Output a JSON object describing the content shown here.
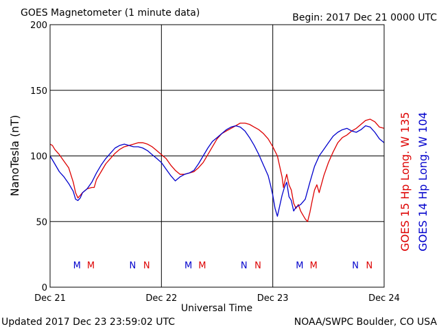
{
  "header": {
    "title": "GOES Magnetometer (1 minute data)",
    "begin": "Begin:  2017 Dec 21 0000 UTC"
  },
  "footer": {
    "updated": "Updated 2017 Dec 23 23:59:02 UTC",
    "credit": "NOAA/SWPC Boulder, CO USA"
  },
  "chart_data": {
    "type": "line",
    "xlabel": "Universal Time",
    "ylabel": "NanoTesla (nT)",
    "ylim": [
      0,
      200
    ],
    "yticks": [
      0,
      50,
      100,
      150,
      200
    ],
    "xlim": [
      0,
      72
    ],
    "xticks": [
      {
        "t": 0,
        "label": "Dec 21"
      },
      {
        "t": 24,
        "label": "Dec 22"
      },
      {
        "t": 48,
        "label": "Dec 23"
      },
      {
        "t": 72,
        "label": "Dec 24"
      }
    ],
    "grid": true,
    "legend_placement": "right-vertical",
    "series": [
      {
        "name": "GOES 15 Hp  Long. W 135",
        "color": "#dd0000",
        "points": [
          [
            0,
            109
          ],
          [
            0.5,
            108
          ],
          [
            1,
            105
          ],
          [
            2,
            101
          ],
          [
            3,
            96
          ],
          [
            4,
            91
          ],
          [
            5,
            80
          ],
          [
            5.5,
            72
          ],
          [
            6,
            68
          ],
          [
            6.5,
            70
          ],
          [
            7,
            72
          ],
          [
            8,
            75
          ],
          [
            9,
            76
          ],
          [
            9.5,
            76
          ],
          [
            10,
            82
          ],
          [
            11,
            88
          ],
          [
            12,
            94
          ],
          [
            13,
            98
          ],
          [
            14,
            102
          ],
          [
            15,
            105
          ],
          [
            16,
            107
          ],
          [
            17,
            108
          ],
          [
            18,
            109
          ],
          [
            19,
            110
          ],
          [
            20,
            110
          ],
          [
            21,
            109
          ],
          [
            22,
            107
          ],
          [
            23,
            104
          ],
          [
            24,
            101
          ],
          [
            25,
            98
          ],
          [
            26,
            93
          ],
          [
            27,
            89
          ],
          [
            28,
            86
          ],
          [
            29,
            86
          ],
          [
            30,
            87
          ],
          [
            31,
            88
          ],
          [
            32,
            91
          ],
          [
            33,
            95
          ],
          [
            34,
            101
          ],
          [
            35,
            107
          ],
          [
            36,
            113
          ],
          [
            37,
            117
          ],
          [
            38,
            119
          ],
          [
            39,
            121
          ],
          [
            40,
            123
          ],
          [
            41,
            125
          ],
          [
            42,
            125
          ],
          [
            43,
            124
          ],
          [
            44,
            122
          ],
          [
            45,
            120
          ],
          [
            46,
            117
          ],
          [
            47,
            113
          ],
          [
            48,
            107
          ],
          [
            49,
            100
          ],
          [
            49.5,
            92
          ],
          [
            50,
            84
          ],
          [
            50.3,
            76
          ],
          [
            50.7,
            82
          ],
          [
            51,
            86
          ],
          [
            51.5,
            78
          ],
          [
            52,
            74
          ],
          [
            52.5,
            64
          ],
          [
            53,
            60
          ],
          [
            53.5,
            63
          ],
          [
            54,
            58
          ],
          [
            54.5,
            55
          ],
          [
            55,
            52
          ],
          [
            55.5,
            50
          ],
          [
            56,
            57
          ],
          [
            56.5,
            66
          ],
          [
            57,
            74
          ],
          [
            57.5,
            78
          ],
          [
            58,
            72
          ],
          [
            59,
            85
          ],
          [
            60,
            95
          ],
          [
            61,
            103
          ],
          [
            62,
            110
          ],
          [
            63,
            114
          ],
          [
            64,
            116
          ],
          [
            65,
            119
          ],
          [
            66,
            121
          ],
          [
            67,
            124
          ],
          [
            68,
            127
          ],
          [
            69,
            128
          ],
          [
            70,
            126
          ],
          [
            71,
            122
          ],
          [
            72,
            121
          ]
        ]
      },
      {
        "name": "GOES 14 Hp  Long. W 104",
        "color": "#0000cc",
        "points": [
          [
            0,
            100
          ],
          [
            1,
            94
          ],
          [
            2,
            88
          ],
          [
            3,
            84
          ],
          [
            4,
            79
          ],
          [
            5,
            73
          ],
          [
            5.5,
            67
          ],
          [
            6,
            66
          ],
          [
            6.5,
            68
          ],
          [
            7,
            72
          ],
          [
            8,
            75
          ],
          [
            9,
            80
          ],
          [
            10,
            87
          ],
          [
            11,
            93
          ],
          [
            12,
            98
          ],
          [
            13,
            102
          ],
          [
            14,
            106
          ],
          [
            15,
            108
          ],
          [
            16,
            109
          ],
          [
            17,
            108
          ],
          [
            18,
            107
          ],
          [
            19,
            107
          ],
          [
            20,
            106
          ],
          [
            21,
            104
          ],
          [
            22,
            101
          ],
          [
            23,
            98
          ],
          [
            24,
            95
          ],
          [
            25,
            90
          ],
          [
            26,
            85
          ],
          [
            27,
            81
          ],
          [
            28,
            84
          ],
          [
            29,
            86
          ],
          [
            30,
            87
          ],
          [
            31,
            89
          ],
          [
            32,
            94
          ],
          [
            33,
            100
          ],
          [
            34,
            106
          ],
          [
            35,
            111
          ],
          [
            36,
            114
          ],
          [
            37,
            117
          ],
          [
            38,
            120
          ],
          [
            39,
            122
          ],
          [
            40,
            123
          ],
          [
            41,
            122
          ],
          [
            42,
            119
          ],
          [
            43,
            114
          ],
          [
            44,
            108
          ],
          [
            45,
            101
          ],
          [
            46,
            93
          ],
          [
            47,
            85
          ],
          [
            47.5,
            78
          ],
          [
            48,
            70
          ],
          [
            48.5,
            60
          ],
          [
            49,
            54
          ],
          [
            49.5,
            62
          ],
          [
            50,
            70
          ],
          [
            50.5,
            76
          ],
          [
            51,
            80
          ],
          [
            51.5,
            69
          ],
          [
            52,
            66
          ],
          [
            52.5,
            58
          ],
          [
            53,
            61
          ],
          [
            54,
            63
          ],
          [
            55,
            67
          ],
          [
            56,
            80
          ],
          [
            57,
            92
          ],
          [
            58,
            100
          ],
          [
            59,
            105
          ],
          [
            60,
            110
          ],
          [
            61,
            115
          ],
          [
            62,
            118
          ],
          [
            63,
            120
          ],
          [
            64,
            121
          ],
          [
            65,
            119
          ],
          [
            66,
            118
          ],
          [
            67,
            120
          ],
          [
            68,
            123
          ],
          [
            69,
            122
          ],
          [
            70,
            118
          ],
          [
            71,
            113
          ],
          [
            72,
            110
          ]
        ]
      }
    ],
    "annotations": [
      {
        "text": "M",
        "t": 5.8,
        "y": 17,
        "series": 1
      },
      {
        "text": "M",
        "t": 8.8,
        "y": 17,
        "series": 0
      },
      {
        "text": "N",
        "t": 17.8,
        "y": 17,
        "series": 1
      },
      {
        "text": "N",
        "t": 20.8,
        "y": 17,
        "series": 0
      },
      {
        "text": "M",
        "t": 29.8,
        "y": 17,
        "series": 1
      },
      {
        "text": "M",
        "t": 32.8,
        "y": 17,
        "series": 0
      },
      {
        "text": "N",
        "t": 41.8,
        "y": 17,
        "series": 1
      },
      {
        "text": "N",
        "t": 44.8,
        "y": 17,
        "series": 0
      },
      {
        "text": "M",
        "t": 53.8,
        "y": 17,
        "series": 1
      },
      {
        "text": "M",
        "t": 56.8,
        "y": 17,
        "series": 0
      },
      {
        "text": "N",
        "t": 65.8,
        "y": 17,
        "series": 1
      },
      {
        "text": "N",
        "t": 68.8,
        "y": 17,
        "series": 0
      }
    ]
  }
}
